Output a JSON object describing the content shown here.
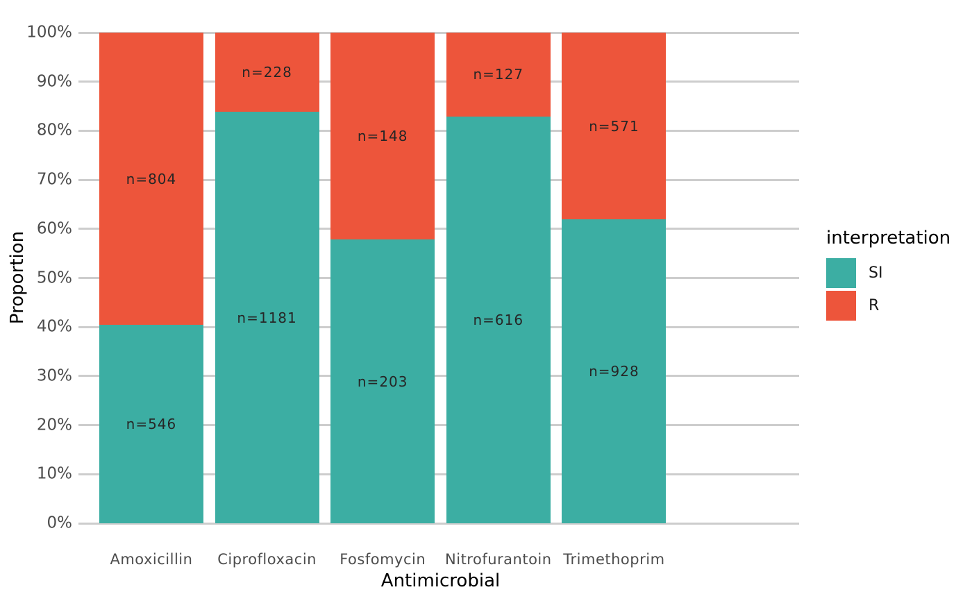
{
  "figure": {
    "background": "#ffffff",
    "gridline_color": "#cdcdcd",
    "axis_text_color": "#4d4d4d",
    "bar_label_color": "#262626"
  },
  "axes": {
    "y": {
      "title": "Proportion",
      "tick_labels": [
        "0%",
        "10%",
        "20%",
        "30%",
        "40%",
        "50%",
        "60%",
        "70%",
        "80%",
        "90%",
        "100%"
      ]
    },
    "x": {
      "title": "Antimicrobial",
      "tick_labels": [
        "Amoxicillin",
        "Ciprofloxacin",
        "Fosfomycin",
        "Nitrofurantoin",
        "Trimethoprim"
      ]
    }
  },
  "legend": {
    "title": "interpretation",
    "items": [
      {
        "label": "SI",
        "color": "#3CAEA3"
      },
      {
        "label": "R",
        "color": "#ED553B"
      }
    ]
  },
  "chart_data": {
    "type": "bar",
    "stacked": true,
    "normalized": "percent",
    "title": "",
    "xlabel": "Antimicrobial",
    "ylabel": "Proportion",
    "ylim": [
      0,
      100
    ],
    "y_tick_step": 10,
    "y_tick_format": "percent",
    "grid": "horizontal-major",
    "legend_position": "right",
    "categories": [
      "Amoxicillin",
      "Ciprofloxacin",
      "Fosfomycin",
      "Nitrofurantoin",
      "Trimethoprim"
    ],
    "series": [
      {
        "name": "SI",
        "color": "#3CAEA3",
        "counts": [
          546,
          1181,
          203,
          616,
          928
        ],
        "percent": [
          40.4,
          83.8,
          57.8,
          82.9,
          61.9
        ],
        "bar_labels": [
          "n=546",
          "n=1181",
          "n=203",
          "n=616",
          "n=928"
        ]
      },
      {
        "name": "R",
        "color": "#ED553B",
        "counts": [
          804,
          228,
          148,
          127,
          571
        ],
        "percent": [
          59.6,
          16.2,
          42.2,
          17.1,
          38.1
        ],
        "bar_labels": [
          "n=804",
          "n=228",
          "n=148",
          "n=127",
          "n=571"
        ]
      }
    ]
  }
}
